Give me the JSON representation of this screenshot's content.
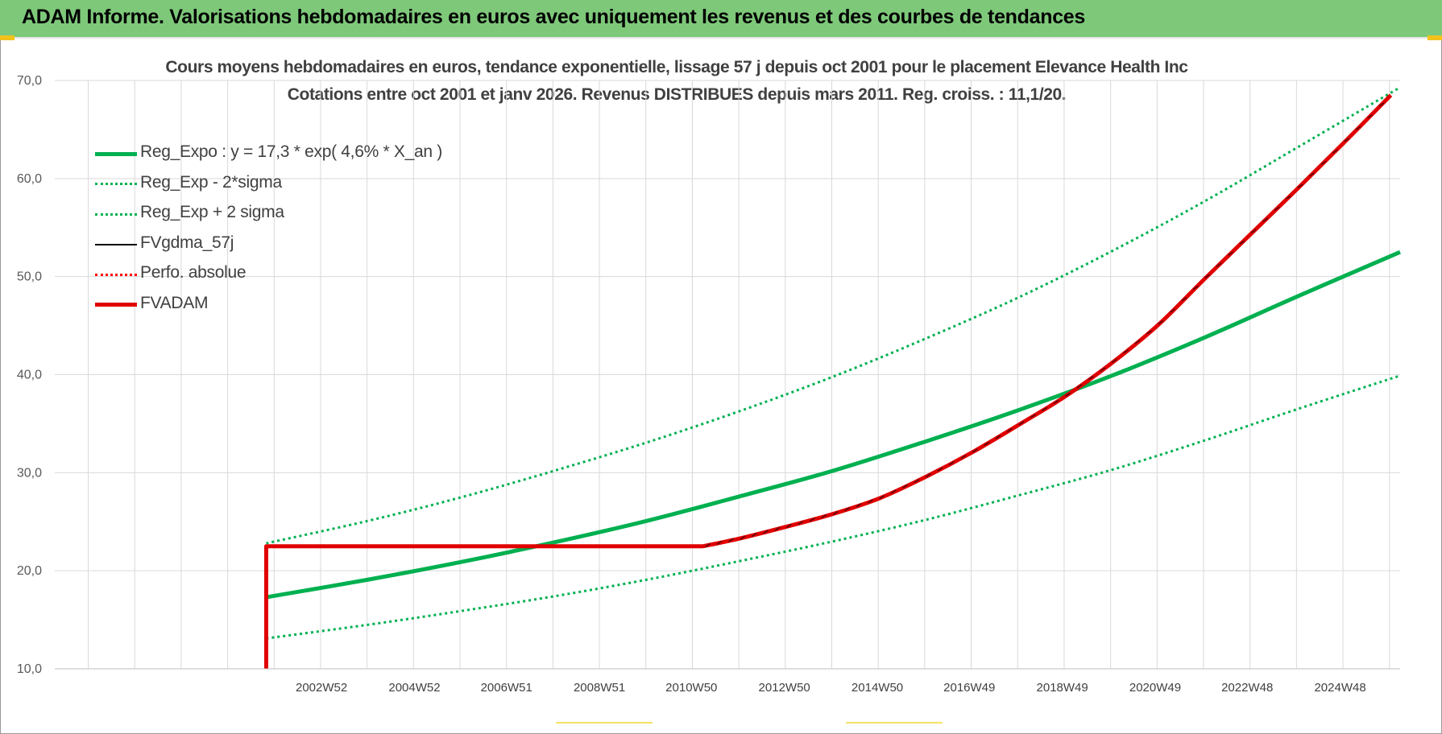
{
  "header": {
    "title": "ADAM Informe. Valorisations hebdomadaires en euros avec uniquement les revenus et des courbes de tendances"
  },
  "chart_data": {
    "type": "line",
    "title_line1": "Cours moyens hebdomadaires en euros, tendance exponentielle, lissage 57 j depuis oct 2001 pour le placement Elevance Health Inc",
    "title_line2": "Cotations entre oct 2001 et janv 2026. Revenus DISTRIBUES depuis mars 2011. Reg. croiss. : 11,1/20.",
    "xlabel": "",
    "ylabel": "",
    "ylim": [
      10,
      70
    ],
    "xlim": [
      1997.25,
      2026.2
    ],
    "yticks": [
      "10,0",
      "20,0",
      "30,0",
      "40,0",
      "50,0",
      "60,0",
      "70,0"
    ],
    "xticks": [
      {
        "label": "2002W52",
        "x": 2002.99
      },
      {
        "label": "2004W52",
        "x": 2004.99
      },
      {
        "label": "2006W51",
        "x": 2006.97
      },
      {
        "label": "2008W51",
        "x": 2008.97
      },
      {
        "label": "2010W50",
        "x": 2010.95
      },
      {
        "label": "2012W50",
        "x": 2012.95
      },
      {
        "label": "2014W50",
        "x": 2014.95
      },
      {
        "label": "2016W49",
        "x": 2016.93
      },
      {
        "label": "2018W49",
        "x": 2018.93
      },
      {
        "label": "2020W49",
        "x": 2020.93
      },
      {
        "label": "2022W48",
        "x": 2022.91
      },
      {
        "label": "2024W48",
        "x": 2024.91
      }
    ],
    "grid": true,
    "legend_position": "top-left",
    "series": [
      {
        "name": "Reg_Expo : y = 17,3 * exp( 4,6% *  X_an )",
        "color": "#00b050",
        "style": "solid-thick",
        "x": [
          2001.8,
          2004,
          2006,
          2008,
          2010,
          2012,
          2014,
          2016,
          2018,
          2020,
          2022,
          2024,
          2026.2
        ],
        "y": [
          17.3,
          19.1,
          20.9,
          22.9,
          25.1,
          27.6,
          30.2,
          33.2,
          36.4,
          39.9,
          43.8,
          48.0,
          52.5
        ]
      },
      {
        "name": "Reg_Exp - 2*sigma",
        "color": "#00b050",
        "style": "dotted",
        "x": [
          2001.8,
          2004,
          2006,
          2008,
          2010,
          2012,
          2014,
          2016,
          2018,
          2020,
          2022,
          2024,
          2026.2
        ],
        "y": [
          13.1,
          14.5,
          15.9,
          17.4,
          19.1,
          21.0,
          23.0,
          25.2,
          27.7,
          30.3,
          33.3,
          36.5,
          39.9
        ]
      },
      {
        "name": "Reg_Exp + 2 sigma",
        "color": "#00b050",
        "style": "dotted",
        "x": [
          2001.8,
          2004,
          2006,
          2008,
          2010,
          2012,
          2014,
          2016,
          2018,
          2020,
          2022,
          2024,
          2026.2
        ],
        "y": [
          22.8,
          25.1,
          27.5,
          30.2,
          33.1,
          36.3,
          39.8,
          43.7,
          47.9,
          52.6,
          57.7,
          63.2,
          69.3
        ]
      },
      {
        "name": "FVgdma_57j",
        "color": "#000000",
        "style": "solid",
        "x": [],
        "y": []
      },
      {
        "name": "Perfo. absolue",
        "color": "#ff0000",
        "style": "dotted",
        "x": [],
        "y": []
      },
      {
        "name": "FVADAM",
        "color": "#e00000",
        "style": "solid-thick",
        "x": [
          2001.8,
          2001.8,
          2011.2,
          2012,
          2013,
          2014,
          2015,
          2016,
          2017,
          2018,
          2019,
          2020,
          2021,
          2022,
          2023,
          2024,
          2025,
          2026
        ],
        "y": [
          10.0,
          22.5,
          22.5,
          23.3,
          24.5,
          25.8,
          27.4,
          29.6,
          32.1,
          34.9,
          37.8,
          41.2,
          45.1,
          49.8,
          54.4,
          59.0,
          63.7,
          68.5
        ]
      }
    ]
  }
}
